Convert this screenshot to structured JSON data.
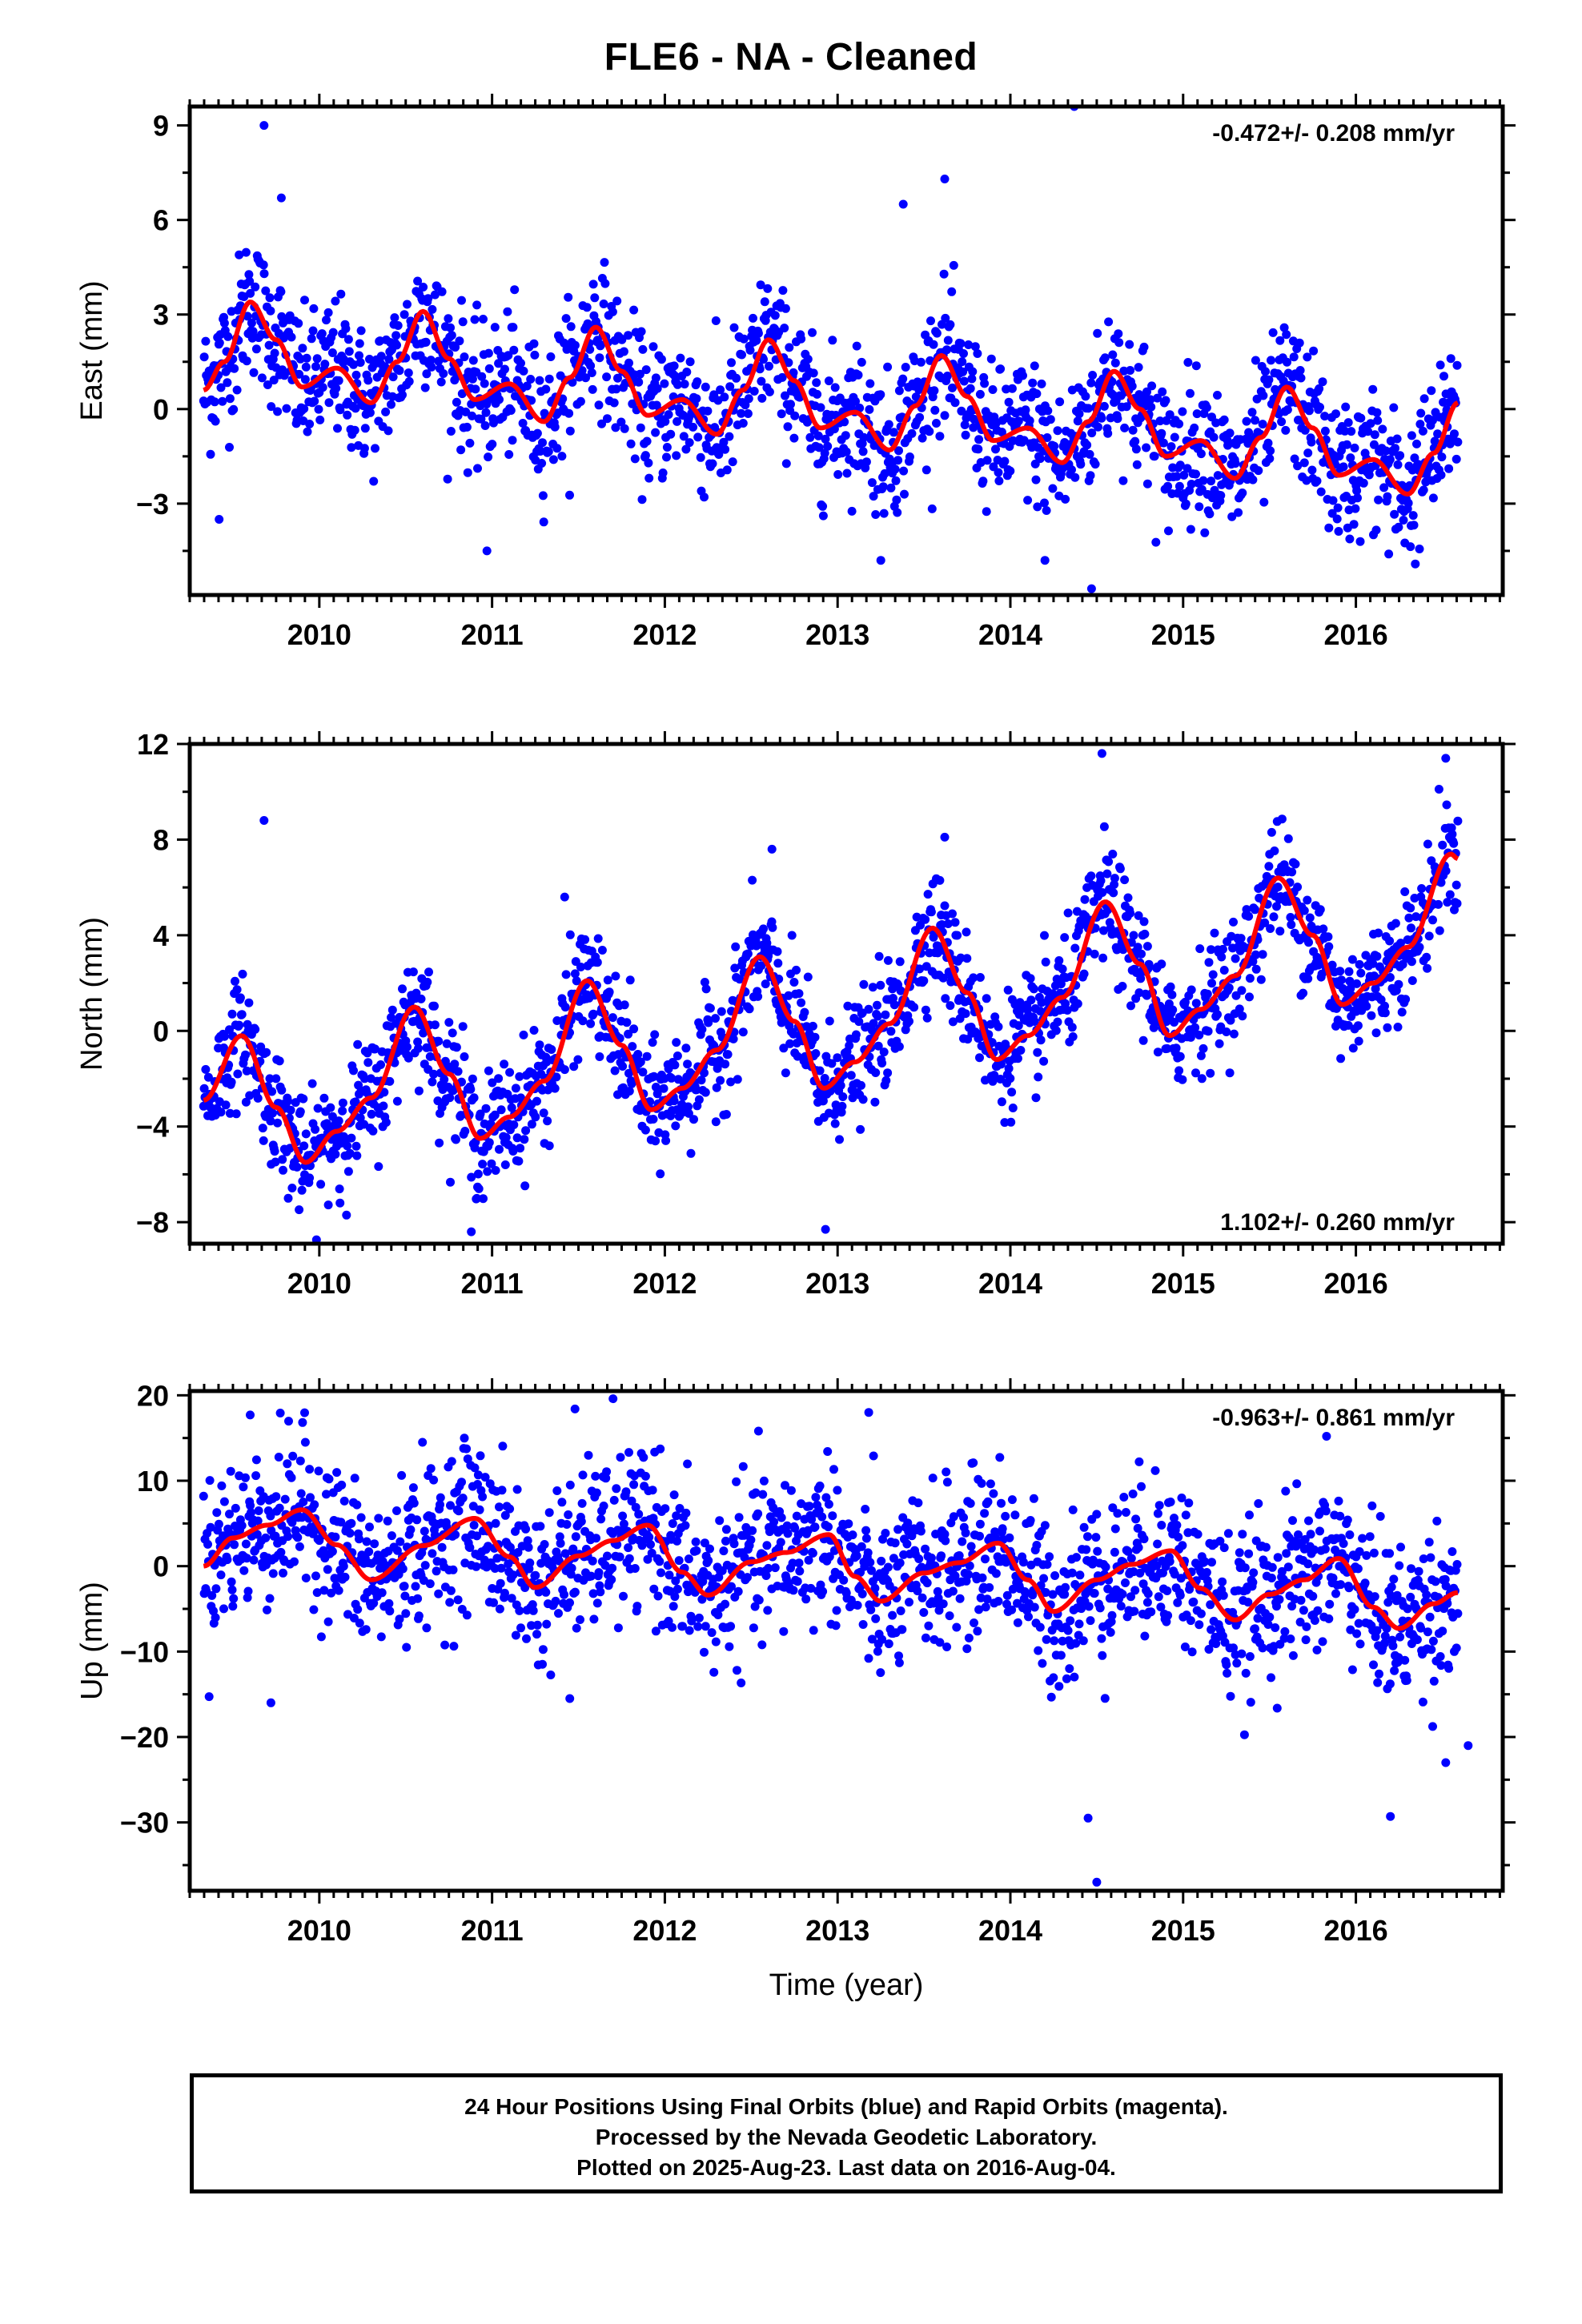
{
  "title": "FLE6  - NA - Cleaned",
  "footer": {
    "line1": "24 Hour Positions Using Final Orbits (blue) and Rapid Orbits (magenta).",
    "line2": "Processed by the Nevada Geodetic Laboratory.",
    "line3": "Plotted on 2025-Aug-23. Last data on 2016-Aug-04."
  },
  "colors": {
    "points": "#0000ff",
    "fit": "#ff0000",
    "frame": "#000000"
  },
  "chart_data": [
    {
      "type": "scatter",
      "name": "east",
      "ylabel": "East (mm)",
      "xlabel": "",
      "rate": "-0.472+/- 0.208 mm/yr",
      "rate_position": "top-right",
      "xlim": [
        2009.25,
        2016.85
      ],
      "ylim": [
        -5.9,
        9.6
      ],
      "yticks": [
        -3,
        0,
        3,
        6,
        9
      ],
      "xticks": [
        2010,
        2011,
        2012,
        2013,
        2014,
        2015,
        2016
      ],
      "data_start": 2009.33,
      "data_end": 2016.59,
      "fit": {
        "x": [
          2009.33,
          2009.45,
          2009.6,
          2009.75,
          2009.9,
          2010.1,
          2010.3,
          2010.45,
          2010.6,
          2010.75,
          2010.9,
          2011.1,
          2011.3,
          2011.45,
          2011.6,
          2011.75,
          2011.9,
          2012.1,
          2012.3,
          2012.45,
          2012.6,
          2012.75,
          2012.9,
          2013.1,
          2013.3,
          2013.45,
          2013.6,
          2013.75,
          2013.9,
          2014.1,
          2014.3,
          2014.45,
          2014.6,
          2014.75,
          2014.9,
          2015.1,
          2015.3,
          2015.45,
          2015.6,
          2015.75,
          2015.9,
          2016.1,
          2016.3,
          2016.45,
          2016.59
        ],
        "y": [
          0.6,
          1.5,
          3.4,
          2.2,
          0.7,
          1.3,
          0.2,
          1.5,
          3.1,
          1.6,
          0.3,
          0.8,
          -0.4,
          1.0,
          2.6,
          1.2,
          -0.2,
          0.3,
          -0.8,
          0.6,
          2.2,
          0.9,
          -0.6,
          -0.1,
          -1.3,
          0.1,
          1.7,
          0.4,
          -1.0,
          -0.6,
          -1.7,
          -0.4,
          1.2,
          0.0,
          -1.5,
          -1.0,
          -2.2,
          -0.9,
          0.7,
          -0.6,
          -2.1,
          -1.6,
          -2.7,
          -1.4,
          0.2
        ]
      },
      "outliers": [
        {
          "x": 2009.68,
          "y": 9.0
        },
        {
          "x": 2014.37,
          "y": 9.6
        },
        {
          "x": 2014.47,
          "y": -5.7
        },
        {
          "x": 2013.62,
          "y": 7.3
        },
        {
          "x": 2013.38,
          "y": 6.5
        },
        {
          "x": 2009.78,
          "y": 6.7
        },
        {
          "x": 2010.97,
          "y": -4.5
        },
        {
          "x": 2013.25,
          "y": -4.8
        },
        {
          "x": 2014.2,
          "y": -4.8
        },
        {
          "x": 2016.19,
          "y": -4.6
        },
        {
          "x": 2009.42,
          "y": -3.5
        }
      ],
      "scatter_sd": 1.1,
      "point_count": 1800
    },
    {
      "type": "scatter",
      "name": "north",
      "ylabel": "North (mm)",
      "xlabel": "",
      "rate": "1.102+/- 0.260 mm/yr",
      "rate_position": "bottom-right",
      "xlim": [
        2009.25,
        2016.85
      ],
      "ylim": [
        -8.9,
        12.0
      ],
      "yticks": [
        -8,
        -4,
        0,
        4,
        8,
        12
      ],
      "xticks": [
        2010,
        2011,
        2012,
        2013,
        2014,
        2015,
        2016
      ],
      "data_start": 2009.33,
      "data_end": 2016.59,
      "fit": {
        "x": [
          2009.33,
          2009.55,
          2009.75,
          2009.92,
          2010.1,
          2010.3,
          2010.55,
          2010.75,
          2010.93,
          2011.1,
          2011.3,
          2011.55,
          2011.75,
          2011.92,
          2012.1,
          2012.3,
          2012.55,
          2012.75,
          2012.92,
          2013.1,
          2013.3,
          2013.55,
          2013.75,
          2013.92,
          2014.1,
          2014.3,
          2014.55,
          2014.75,
          2014.92,
          2015.1,
          2015.3,
          2015.55,
          2015.75,
          2015.92,
          2016.1,
          2016.3,
          2016.55,
          2016.59
        ],
        "y": [
          -2.9,
          -0.2,
          -3.2,
          -5.5,
          -4.2,
          -2.8,
          1.0,
          -1.8,
          -4.5,
          -3.6,
          -2.1,
          2.1,
          -0.6,
          -3.3,
          -2.4,
          -0.8,
          3.1,
          0.4,
          -2.4,
          -1.3,
          0.3,
          4.3,
          1.6,
          -1.2,
          -0.2,
          1.4,
          5.4,
          2.8,
          -0.2,
          0.9,
          2.3,
          6.4,
          4.0,
          1.1,
          2.0,
          3.5,
          7.4,
          7.2
        ]
      },
      "outliers": [
        {
          "x": 2009.68,
          "y": 8.8
        },
        {
          "x": 2014.53,
          "y": 11.6
        },
        {
          "x": 2012.93,
          "y": -8.3
        },
        {
          "x": 2010.88,
          "y": -8.4
        },
        {
          "x": 2016.52,
          "y": 11.4
        },
        {
          "x": 2012.62,
          "y": 7.6
        },
        {
          "x": 2011.42,
          "y": 5.6
        },
        {
          "x": 2013.62,
          "y": 8.1
        },
        {
          "x": 2009.82,
          "y": -7.0
        },
        {
          "x": 2010.12,
          "y": -7.2
        }
      ],
      "scatter_sd": 1.2,
      "point_count": 1800
    },
    {
      "type": "scatter",
      "name": "up",
      "ylabel": "Up (mm)",
      "xlabel": "Time (year)",
      "rate": "-0.963+/- 0.861 mm/yr",
      "rate_position": "top-right",
      "xlim": [
        2009.25,
        2016.85
      ],
      "ylim": [
        -38.0,
        20.5
      ],
      "yticks": [
        -30,
        -20,
        -10,
        0,
        10,
        20
      ],
      "xticks": [
        2010,
        2011,
        2012,
        2013,
        2014,
        2015,
        2016
      ],
      "data_start": 2009.33,
      "data_end": 2016.59,
      "fit": {
        "x": [
          2009.33,
          2009.5,
          2009.7,
          2009.9,
          2010.1,
          2010.3,
          2010.6,
          2010.9,
          2011.1,
          2011.25,
          2011.5,
          2011.7,
          2011.9,
          2012.1,
          2012.25,
          2012.5,
          2012.7,
          2012.95,
          2013.1,
          2013.25,
          2013.5,
          2013.7,
          2013.93,
          2014.1,
          2014.25,
          2014.5,
          2014.7,
          2014.93,
          2015.1,
          2015.3,
          2015.5,
          2015.7,
          2015.9,
          2016.1,
          2016.25,
          2016.45,
          2016.59
        ],
        "y": [
          0.0,
          3.3,
          4.8,
          6.6,
          2.5,
          -1.6,
          2.4,
          5.6,
          1.1,
          -2.5,
          1.2,
          3.0,
          4.8,
          -0.7,
          -3.4,
          0.5,
          1.6,
          3.7,
          -1.2,
          -4.1,
          -0.8,
          0.4,
          2.7,
          -1.6,
          -5.3,
          -1.6,
          0.2,
          1.8,
          -2.6,
          -6.3,
          -3.3,
          -1.6,
          0.9,
          -4.8,
          -7.3,
          -4.4,
          -3.1
        ]
      },
      "outliers": [
        {
          "x": 2014.5,
          "y": -37.0
        },
        {
          "x": 2014.45,
          "y": -29.5
        },
        {
          "x": 2016.2,
          "y": -29.3
        },
        {
          "x": 2016.52,
          "y": -23.0
        },
        {
          "x": 2016.65,
          "y": -21.0
        },
        {
          "x": 2011.45,
          "y": -15.5
        },
        {
          "x": 2011.7,
          "y": 19.6
        },
        {
          "x": 2011.48,
          "y": 18.4
        },
        {
          "x": 2013.18,
          "y": 18.0
        },
        {
          "x": 2009.6,
          "y": 17.7
        },
        {
          "x": 2015.83,
          "y": 15.2
        },
        {
          "x": 2009.72,
          "y": -16.0
        }
      ],
      "scatter_sd": 4.6,
      "point_count": 1800
    }
  ]
}
